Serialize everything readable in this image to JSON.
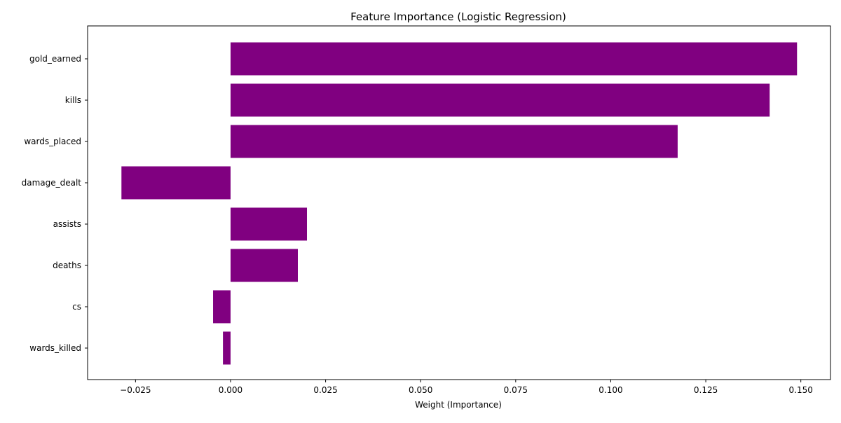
{
  "chart_data": {
    "type": "bar",
    "orientation": "horizontal",
    "title": "Feature Importance (Logistic Regression)",
    "xlabel": "Weight (Importance)",
    "ylabel": "",
    "categories": [
      "gold_earned",
      "kills",
      "wards_placed",
      "damage_dealt",
      "assists",
      "deaths",
      "cs",
      "wards_killed"
    ],
    "values": [
      0.149,
      0.1418,
      0.1176,
      -0.0287,
      0.0201,
      0.0177,
      -0.0046,
      -0.002
    ],
    "xlim": [
      -0.0376,
      0.1578
    ],
    "xticks": [
      -0.025,
      0.0,
      0.025,
      0.05,
      0.075,
      0.1,
      0.125,
      0.15
    ],
    "xtick_labels": [
      "−0.025",
      "0.000",
      "0.025",
      "0.050",
      "0.075",
      "0.100",
      "0.125",
      "0.150"
    ],
    "grid": false,
    "legend": "none",
    "bar_color": "#800080"
  }
}
